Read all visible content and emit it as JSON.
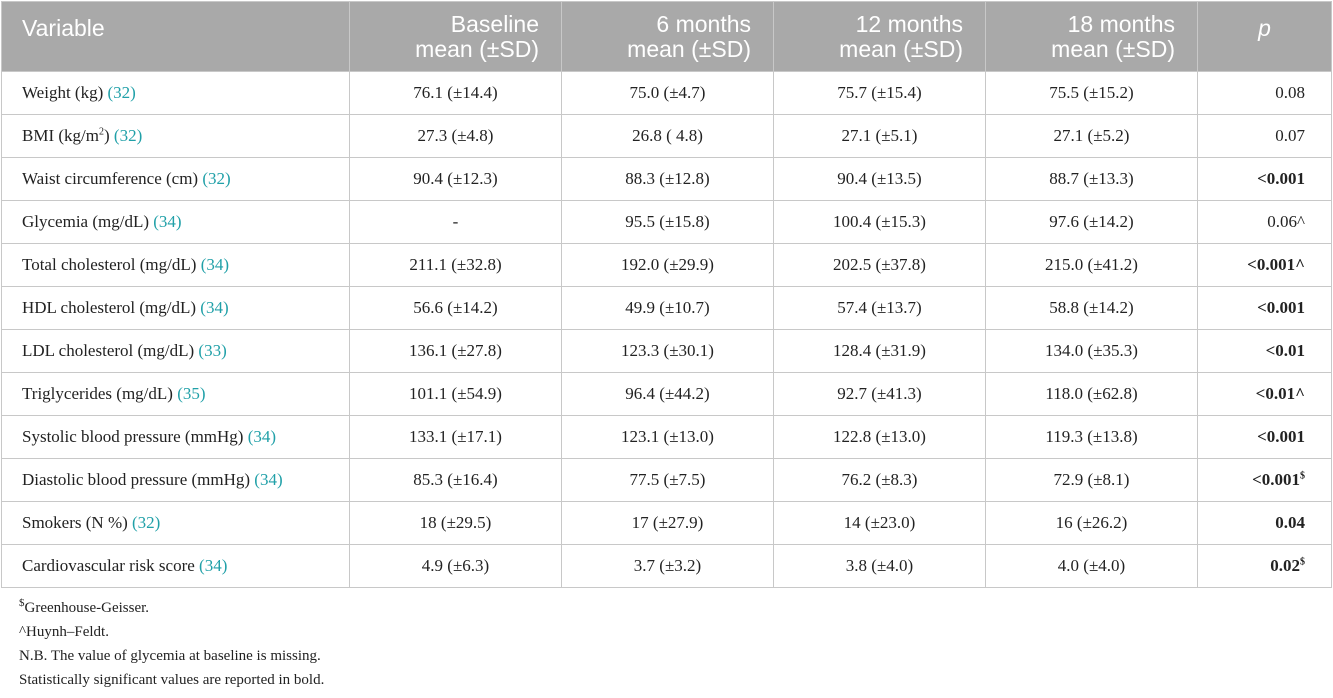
{
  "table": {
    "headers": [
      {
        "lines": [
          "Variable"
        ]
      },
      {
        "lines": [
          "Baseline",
          "mean (±SD)"
        ]
      },
      {
        "lines": [
          "6 months",
          "mean (±SD)"
        ]
      },
      {
        "lines": [
          "12 months",
          "mean (±SD)"
        ]
      },
      {
        "lines": [
          "18 months",
          "mean (±SD)"
        ]
      },
      {
        "lines": [
          "p"
        ]
      }
    ],
    "rows": [
      {
        "label": "Weight (kg) ",
        "sup": "",
        "label_after": "",
        "ref": "(32)",
        "baseline": "76.1 (±14.4)",
        "m6": "75.0 (±4.7)",
        "m12": "75.7 (±15.4)",
        "m18": "75.5 (±15.2)",
        "p": "0.08",
        "p_sup": "",
        "bold": false
      },
      {
        "label": "BMI (kg/m",
        "sup": "2",
        "label_after": ") ",
        "ref": "(32)",
        "baseline": "27.3 (±4.8)",
        "m6": "26.8 ( 4.8)",
        "m12": "27.1 (±5.1)",
        "m18": "27.1 (±5.2)",
        "p": "0.07",
        "p_sup": "",
        "bold": false
      },
      {
        "label": "Waist circumference (cm) ",
        "sup": "",
        "label_after": "",
        "ref": "(32)",
        "baseline": "90.4 (±12.3)",
        "m6": "88.3 (±12.8)",
        "m12": "90.4 (±13.5)",
        "m18": "88.7 (±13.3)",
        "p": "<0.001",
        "p_sup": "",
        "bold": true
      },
      {
        "label": "Glycemia (mg/dL) ",
        "sup": "",
        "label_after": "",
        "ref": "(34)",
        "baseline": "-",
        "m6": "95.5 (±15.8)",
        "m12": "100.4 (±15.3)",
        "m18": "97.6 (±14.2)",
        "p": "0.06^",
        "p_sup": "",
        "bold": false
      },
      {
        "label": "Total cholesterol (mg/dL) ",
        "sup": "",
        "label_after": "",
        "ref": "(34)",
        "baseline": "211.1 (±32.8)",
        "m6": "192.0 (±29.9)",
        "m12": "202.5 (±37.8)",
        "m18": "215.0 (±41.2)",
        "p": "<0.001^",
        "p_sup": "",
        "bold": true
      },
      {
        "label": "HDL cholesterol (mg/dL) ",
        "sup": "",
        "label_after": "",
        "ref": "(34)",
        "baseline": "56.6 (±14.2)",
        "m6": "49.9 (±10.7)",
        "m12": "57.4 (±13.7)",
        "m18": "58.8 (±14.2)",
        "p": "<0.001",
        "p_sup": "",
        "bold": true
      },
      {
        "label": "LDL cholesterol (mg/dL) ",
        "sup": "",
        "label_after": "",
        "ref": "(33)",
        "baseline": "136.1 (±27.8)",
        "m6": "123.3 (±30.1)",
        "m12": "128.4 (±31.9)",
        "m18": "134.0 (±35.3)",
        "p": "<0.01",
        "p_sup": "",
        "bold": true
      },
      {
        "label": "Triglycerides (mg/dL) ",
        "sup": "",
        "label_after": "",
        "ref": "(35)",
        "baseline": "101.1 (±54.9)",
        "m6": "96.4 (±44.2)",
        "m12": "92.7 (±41.3)",
        "m18": "118.0 (±62.8)",
        "p": "<0.01^",
        "p_sup": "",
        "bold": true
      },
      {
        "label": "Systolic blood pressure (mmHg) ",
        "sup": "",
        "label_after": "",
        "ref": "(34)",
        "baseline": "133.1 (±17.1)",
        "m6": "123.1 (±13.0)",
        "m12": "122.8 (±13.0)",
        "m18": "119.3 (±13.8)",
        "p": "<0.001",
        "p_sup": "",
        "bold": true
      },
      {
        "label": "Diastolic blood pressure (mmHg) ",
        "sup": "",
        "label_after": "",
        "ref": "(34)",
        "baseline": "85.3 (±16.4)",
        "m6": "77.5 (±7.5)",
        "m12": "76.2 (±8.3)",
        "m18": "72.9 (±8.1)",
        "p": "<0.001",
        "p_sup": "$",
        "bold": true
      },
      {
        "label": "Smokers (N %) ",
        "sup": "",
        "label_after": "",
        "ref": "(32)",
        "baseline": "18 (±29.5)",
        "m6": "17 (±27.9)",
        "m12": "14 (±23.0)",
        "m18": "16 (±26.2)",
        "p": "0.04",
        "p_sup": "",
        "bold": true
      },
      {
        "label": "Cardiovascular risk score ",
        "sup": "",
        "label_after": "",
        "ref": "(34)",
        "baseline": "4.9 (±6.3)",
        "m6": "3.7 (±3.2)",
        "m12": "3.8 (±4.0)",
        "m18": "4.0 (±4.0)",
        "p": "0.02",
        "p_sup": "$",
        "bold": true
      }
    ]
  },
  "footnotes": [
    {
      "sup": "$",
      "text": "Greenhouse-Geisser."
    },
    {
      "sup": "",
      "text": "^Huynh–Feldt."
    },
    {
      "sup": "",
      "text": "N.B. The value of glycemia at baseline is missing."
    },
    {
      "sup": "",
      "text": "Statistically significant values are reported in bold."
    }
  ],
  "colors": {
    "header_bg": "#a9a9a9",
    "header_text": "#ffffff",
    "ref_link": "#20a0a8",
    "border": "#c8c8c8"
  }
}
